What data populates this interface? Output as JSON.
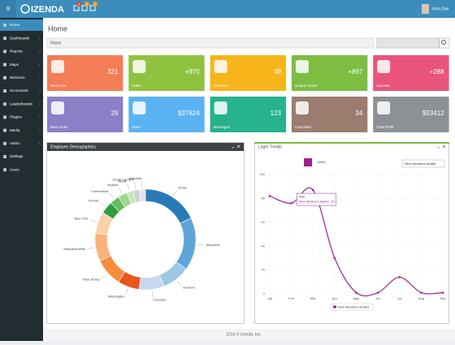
{
  "header": {
    "logo": "IZENDA",
    "badges": [
      "4",
      "5",
      "1"
    ],
    "user": "John Doe"
  },
  "sidebar": {
    "items": [
      "Home",
      "Dashboards",
      "Reports",
      "Maps",
      "Welcome",
      "Scorecards",
      "Leaderboards",
      "Plugins",
      "Media",
      "Admin",
      "Settings",
      "Users"
    ]
  },
  "page_title": "Home",
  "breadcrumb": "Home",
  "tiles": [
    {
      "label": "New User",
      "value": "321",
      "color": "#f47d56"
    },
    {
      "label": "Sales",
      "value": "+970",
      "color": "#8fc23f"
    },
    {
      "label": "Overview",
      "value": "49",
      "color": "#f8b51b"
    },
    {
      "label": "Unique Visitor",
      "value": "+897",
      "color": "#7cbd42"
    },
    {
      "label": "Upvotes",
      "value": "+288",
      "color": "#e9547b"
    },
    {
      "label": "New Order",
      "value": "29",
      "color": "#8a80c8"
    },
    {
      "label": "Store",
      "value": "$37624",
      "color": "#5bb2f2"
    },
    {
      "label": "Messages",
      "value": "123",
      "color": "#25b28c"
    },
    {
      "label": "Cancelled",
      "value": "34",
      "color": "#9c7c6f"
    },
    {
      "label": "Total Profit",
      "value": "$53412",
      "color": "#8d9196"
    }
  ],
  "chart_data": [
    {
      "type": "donut",
      "title": "Employee Demographics",
      "categories": [
        "Texas",
        "Maryland",
        "Vermont",
        "Colorado",
        "Washington",
        "New Jersey",
        "Massachusetts",
        "New York",
        "Florida",
        "Connecticut",
        "Virginia",
        "Illinois",
        "South Carolina",
        "Alabama"
      ],
      "values": [
        18,
        17,
        9,
        8,
        7,
        9,
        9,
        7,
        4,
        3,
        3,
        2,
        2,
        2
      ],
      "colors": [
        "#2a7ab8",
        "#5fa6d8",
        "#9cc8e6",
        "#c5d8ef",
        "#e8561c",
        "#f58d3c",
        "#f9b37a",
        "#fcd0a8",
        "#2e9f3e",
        "#65bc5c",
        "#9fd590",
        "#c9e7bd",
        "#cfcfcf",
        "#e4e4e4"
      ]
    },
    {
      "type": "line",
      "title": "Login Trends",
      "categories": [
        "Jan",
        "Feb",
        "Mar",
        "Apr",
        "May",
        "Jun",
        "Jul",
        "Aug",
        "Sep"
      ],
      "series": [
        {
          "name": "New Members Added",
          "color": "#a0218d",
          "values": [
            82,
            76,
            87,
            30,
            1,
            1,
            14,
            1,
            1
          ]
        }
      ],
      "ylim": [
        0,
        100
      ],
      "yticks": [
        0,
        20,
        40,
        60,
        80,
        100
      ],
      "grid": true,
      "zoom": "100%",
      "selector": "New Members Added",
      "tooltip": {
        "title": "Mar",
        "text": "New Members Added : 87"
      }
    }
  ],
  "footer": "2014 © Izenda, Inc."
}
